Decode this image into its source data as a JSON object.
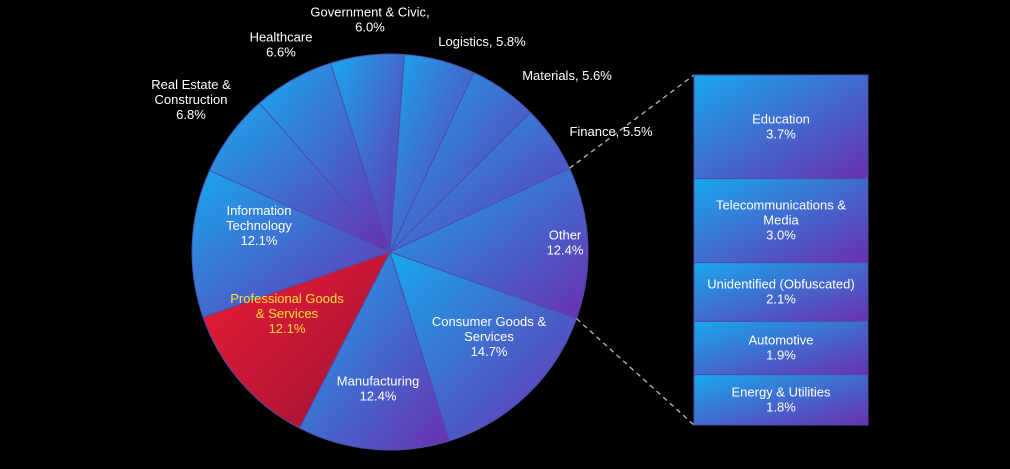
{
  "chart_data": {
    "type": "pie",
    "title": "",
    "slices": [
      {
        "name": "Other",
        "label_lines": [
          "Other",
          "12.4%"
        ],
        "value": 12.4
      },
      {
        "name": "Consumer Goods & Services",
        "label_lines": [
          "Consumer Goods &",
          "Services",
          "14.7%"
        ],
        "value": 14.7
      },
      {
        "name": "Manufacturing",
        "label_lines": [
          "Manufacturing",
          "12.4%"
        ],
        "value": 12.4
      },
      {
        "name": "Professional Goods & Services",
        "label_lines": [
          "Professional Goods",
          "& Services",
          "12.1%"
        ],
        "value": 12.1,
        "highlighted": true
      },
      {
        "name": "Information Technology",
        "label_lines": [
          "Information",
          "Technology",
          "12.1%"
        ],
        "value": 12.1
      },
      {
        "name": "Real Estate & Construction",
        "label_lines": [
          "Real Estate &",
          "Construction",
          "6.8%"
        ],
        "value": 6.8
      },
      {
        "name": "Healthcare",
        "label_lines": [
          "Healthcare",
          "6.6%"
        ],
        "value": 6.6
      },
      {
        "name": "Government & Civic",
        "label_lines": [
          "Government & Civic,",
          "6.0%"
        ],
        "value": 6.0
      },
      {
        "name": "Logistics",
        "label_lines": [
          "Logistics, 5.8%"
        ],
        "value": 5.8
      },
      {
        "name": "Materials",
        "label_lines": [
          "Materials, 5.6%"
        ],
        "value": 5.6
      },
      {
        "name": "Finance",
        "label_lines": [
          "Finance, 5.5%"
        ],
        "value": 5.5
      }
    ],
    "breakout": {
      "of": "Other",
      "type": "stacked-bar",
      "items": [
        {
          "name": "Education",
          "label_lines": [
            "Education",
            "3.7%"
          ],
          "value": 3.7
        },
        {
          "name": "Telecommunications & Media",
          "label_lines": [
            "Telecommunications &",
            "Media",
            "3.0%"
          ],
          "value": 3.0
        },
        {
          "name": "Unidentified (Obfuscated)",
          "label_lines": [
            "Unidentified (Obfuscated)",
            "2.1%"
          ],
          "value": 2.1
        },
        {
          "name": "Automotive",
          "label_lines": [
            "Automotive",
            "1.9%"
          ],
          "value": 1.9
        },
        {
          "name": "Energy & Utilities",
          "label_lines": [
            "Energy & Utilities",
            "1.8%"
          ],
          "value": 1.8
        }
      ]
    },
    "colors": {
      "background": "#000000",
      "slice_gradient_start": "#18a8ee",
      "slice_gradient_end": "#6a2fb0",
      "highlight_gradient_start": "#ee1d36",
      "highlight_gradient_end": "#9c1236",
      "highlight_label": "#ffe033",
      "label": "#ffffff",
      "separator": "#4a4faa",
      "connector": "#bbbbbb"
    }
  }
}
